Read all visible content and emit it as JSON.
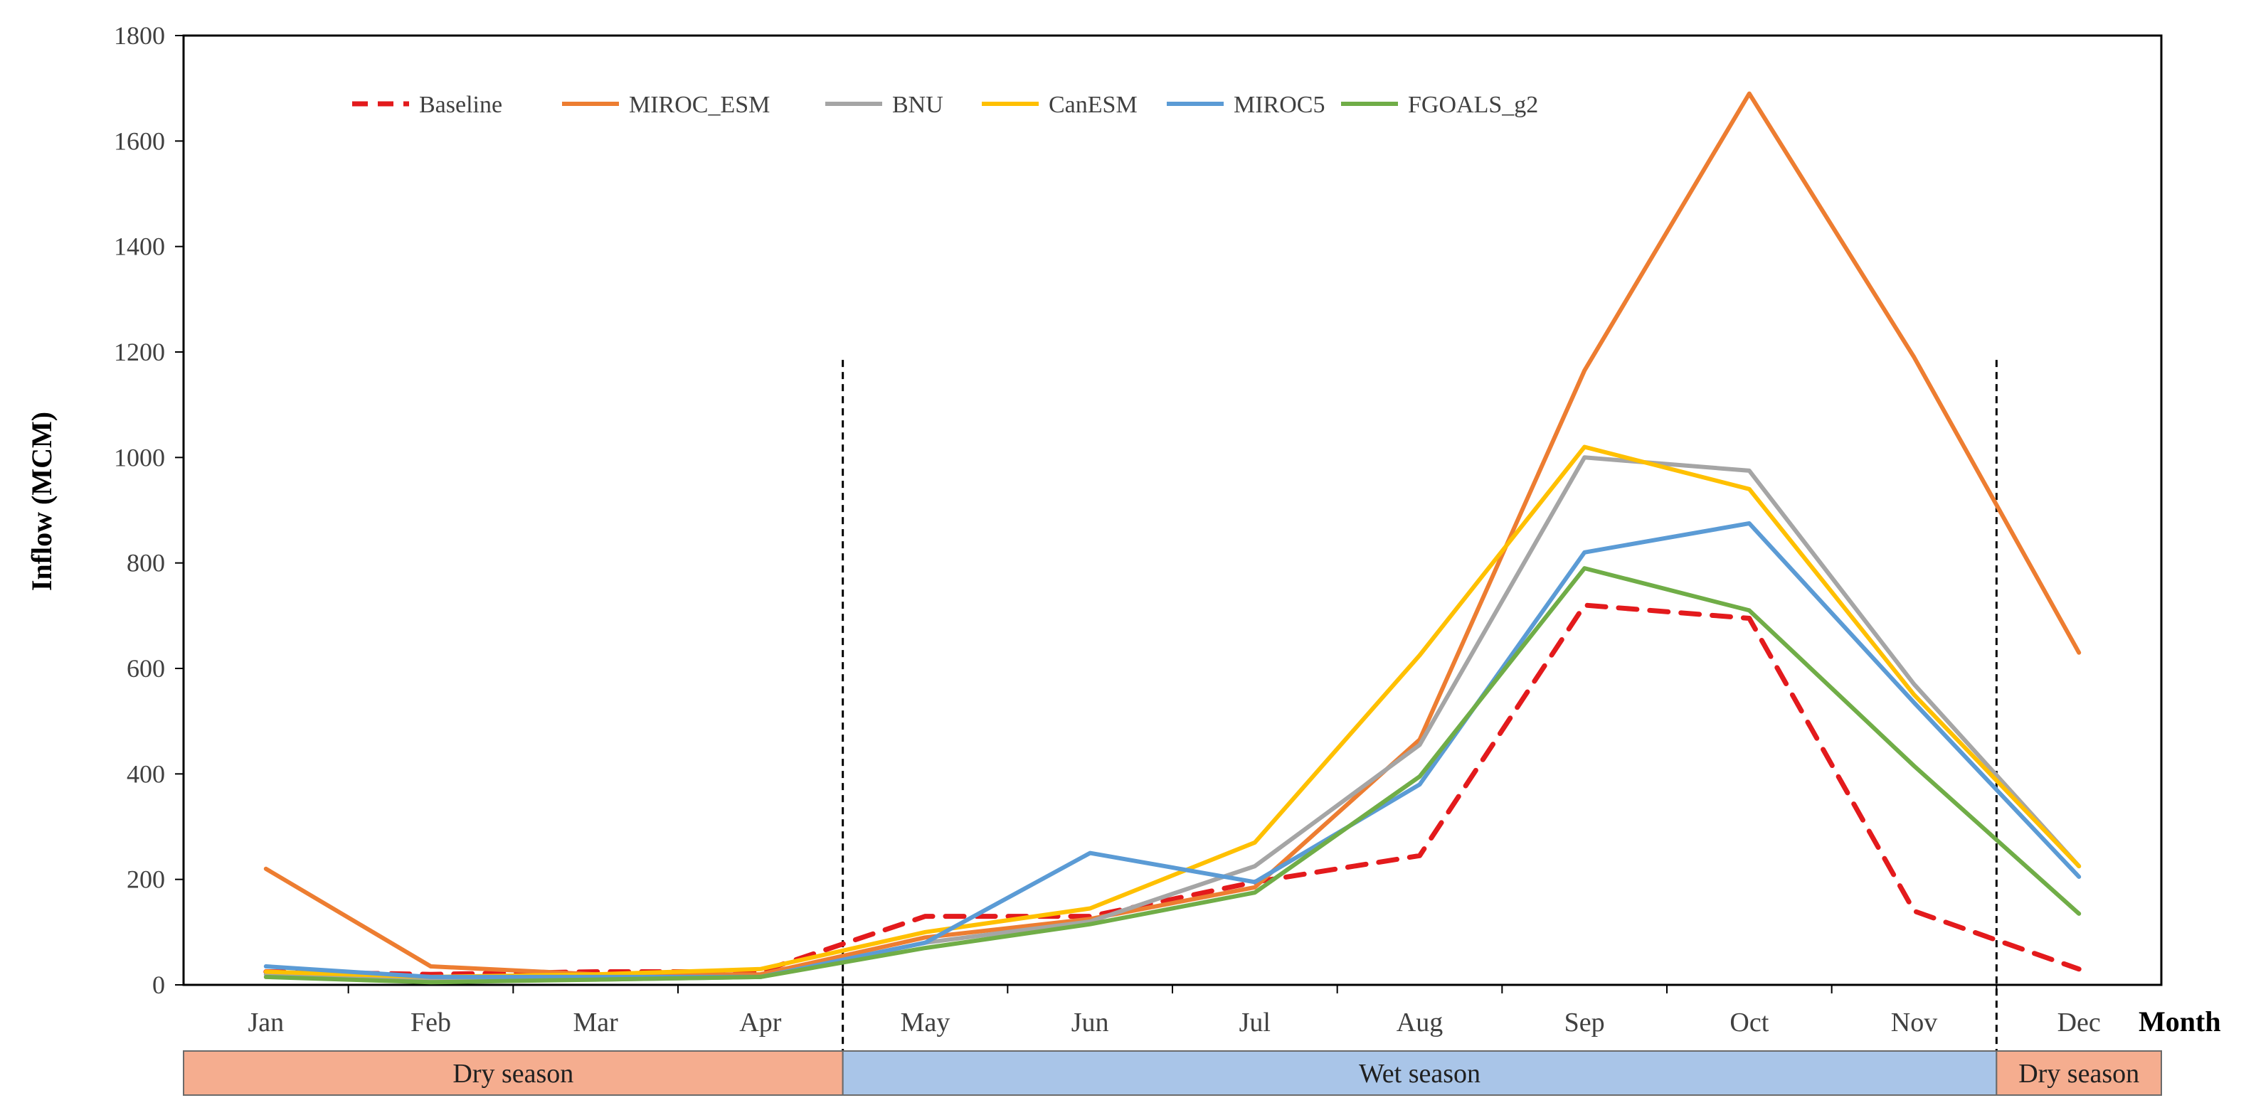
{
  "chart_data": {
    "type": "line",
    "title": "",
    "xlabel": "Month",
    "ylabel": "Inflow (MCM)",
    "ylim": [
      0,
      1800
    ],
    "yticks": [
      0,
      200,
      400,
      600,
      800,
      1000,
      1200,
      1400,
      1600,
      1800
    ],
    "grid": false,
    "legend_position": "top-left",
    "categories": [
      "Jan",
      "Feb",
      "Mar",
      "Apr",
      "May",
      "Jun",
      "Jul",
      "Aug",
      "Sep",
      "Oct",
      "Nov",
      "Dec"
    ],
    "series": [
      {
        "name": "Baseline",
        "color": "#e31a1c",
        "dash": true,
        "values": [
          25,
          20,
          25,
          25,
          130,
          130,
          195,
          245,
          720,
          695,
          140,
          30
        ]
      },
      {
        "name": "MIROC_ESM",
        "color": "#ed7d31",
        "dash": false,
        "values": [
          220,
          35,
          20,
          20,
          90,
          125,
          185,
          465,
          1165,
          1690,
          1190,
          630
        ]
      },
      {
        "name": "BNU",
        "color": "#a5a5a5",
        "dash": false,
        "values": [
          20,
          10,
          10,
          15,
          80,
          120,
          225,
          455,
          1000,
          975,
          570,
          225
        ]
      },
      {
        "name": "CanESM",
        "color": "#ffc000",
        "dash": false,
        "values": [
          25,
          15,
          20,
          30,
          100,
          145,
          270,
          625,
          1020,
          940,
          550,
          225
        ]
      },
      {
        "name": "MIROC5",
        "color": "#5b9bd5",
        "dash": false,
        "values": [
          35,
          15,
          15,
          15,
          80,
          250,
          195,
          380,
          820,
          875,
          535,
          205
        ]
      },
      {
        "name": "FGOALS_g2",
        "color": "#70ad47",
        "dash": false,
        "values": [
          15,
          5,
          10,
          15,
          70,
          115,
          175,
          395,
          790,
          710,
          415,
          135
        ]
      }
    ],
    "season_dividers_after": [
      "Apr",
      "Nov"
    ],
    "seasons": [
      {
        "label": "Dry season",
        "from": "Jan",
        "to": "Apr",
        "color": "#f5ad8f"
      },
      {
        "label": "Wet season",
        "from": "May",
        "to": "Nov",
        "color": "#a9c5e8"
      },
      {
        "label": "Dry season",
        "from": "Dec",
        "to": "Dec",
        "color": "#f5ad8f"
      }
    ]
  }
}
